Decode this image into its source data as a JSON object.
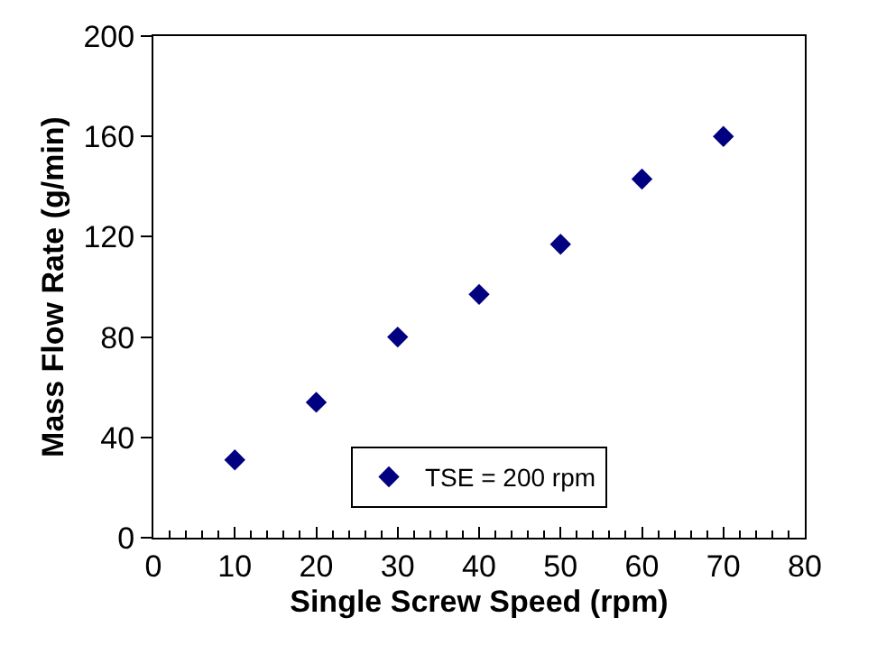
{
  "chart_data": {
    "type": "scatter",
    "xlabel": "Single Screw Speed (rpm)",
    "ylabel": "Mass Flow Rate (g/min)",
    "x": [
      10,
      20,
      30,
      40,
      50,
      60,
      70
    ],
    "series": [
      {
        "name": "TSE = 200 rpm",
        "color": "#000080",
        "values": [
          31,
          54,
          80,
          97,
          117,
          143,
          160
        ]
      }
    ],
    "xlim": [
      0,
      80
    ],
    "xticks": [
      0,
      10,
      20,
      30,
      40,
      50,
      60,
      70,
      80
    ],
    "ylim": [
      0,
      200
    ],
    "yticks": [
      0,
      40,
      80,
      120,
      160,
      200
    ],
    "marker": "diamond",
    "legend": "bottom"
  }
}
